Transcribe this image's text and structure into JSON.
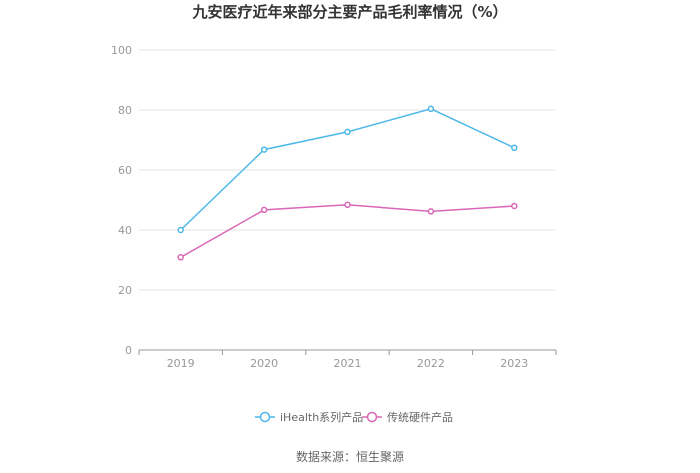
{
  "chart_data": {
    "type": "line",
    "title": "九安医疗近年来部分主要产品毛利率情况（%）",
    "x": [
      "2019",
      "2020",
      "2021",
      "2022",
      "2023"
    ],
    "ylim": [
      0,
      100
    ],
    "yticks": [
      0,
      20,
      40,
      60,
      80,
      100
    ],
    "grid": true,
    "legend_position": "bottom",
    "series": [
      {
        "name": "iHealth系列产品",
        "color": "#4db8e8",
        "values": [
          40.0,
          66.8,
          72.7,
          80.4,
          67.4
        ]
      },
      {
        "name": "传统硬件产品",
        "color": "#d966b6",
        "values": [
          30.9,
          46.7,
          48.4,
          46.2,
          48.0
        ]
      }
    ]
  },
  "source_text": "数据来源：恒生聚源"
}
